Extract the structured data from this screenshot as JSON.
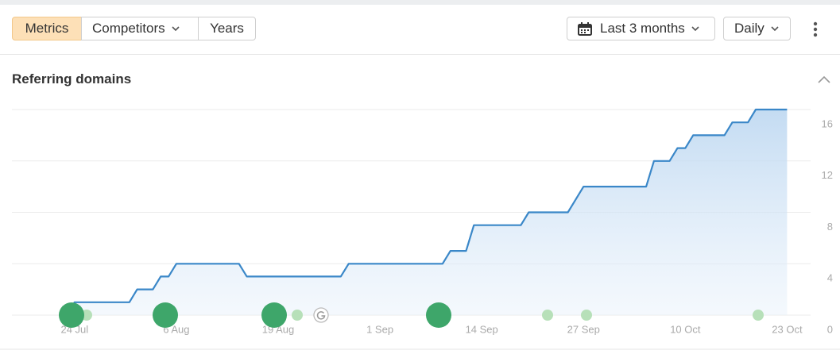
{
  "toolbar": {
    "tabs": [
      "Metrics",
      "Competitors",
      "Years"
    ],
    "range": "Last 3 months",
    "interval": "Daily"
  },
  "chart_data": {
    "type": "line",
    "title": "Referring domains",
    "color": "#3a87c8",
    "area": true,
    "grid": true,
    "x": [
      "23 Jul",
      "24 Jul",
      "31 Jul",
      "1 Aug",
      "3 Aug",
      "4 Aug",
      "5 Aug",
      "6 Aug",
      "14 Aug",
      "15 Aug",
      "27 Aug",
      "28 Aug",
      "9 Sep",
      "10 Sep",
      "12 Sep",
      "13 Sep",
      "19 Sep",
      "20 Sep",
      "25 Sep",
      "27 Sep",
      "5 Oct",
      "6 Oct",
      "8 Oct",
      "9 Oct",
      "10 Oct",
      "11 Oct",
      "15 Oct",
      "16 Oct",
      "18 Oct",
      "19 Oct",
      "23 Oct"
    ],
    "values": [
      0,
      1,
      1,
      2,
      2,
      3,
      3,
      4,
      4,
      3,
      3,
      4,
      4,
      5,
      5,
      7,
      7,
      8,
      8,
      10,
      10,
      12,
      12,
      13,
      13,
      14,
      14,
      15,
      15,
      16,
      16
    ],
    "xlim": [
      "16 Jul",
      "26 Oct"
    ],
    "xticks": [
      "24 Jul",
      "6 Aug",
      "19 Aug",
      "1 Sep",
      "14 Sep",
      "27 Sep",
      "10 Oct",
      "23 Oct"
    ],
    "ylim": [
      0,
      16
    ],
    "yticks": [
      0,
      4,
      8,
      12,
      16
    ]
  }
}
